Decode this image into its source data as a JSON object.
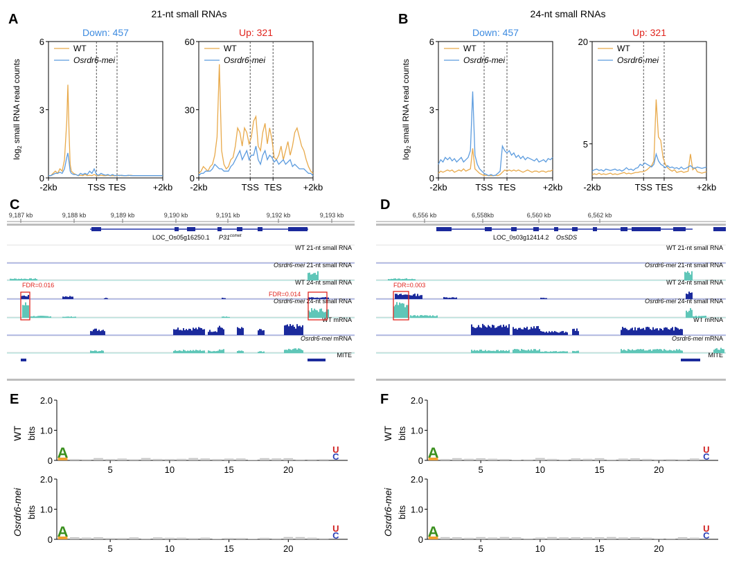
{
  "panels": {
    "A": "A",
    "B": "B",
    "C": "C",
    "D": "D",
    "E": "E",
    "F": "F"
  },
  "colors": {
    "wt": "#e8a94a",
    "mut": "#5b9bde",
    "down": "#3d8be0",
    "up": "#e0231c",
    "track_wt": "#1b2a9c",
    "track_mut": "#5fc6b8",
    "fdr": "#e0231c"
  },
  "metaplots": {
    "A": {
      "title": "21-nt small RNAs",
      "ylabel": "log2 small RNA read counts",
      "xticks": [
        "-2kb",
        "TSS",
        "TES",
        "+2kb"
      ],
      "legend": [
        "WT",
        "Osrdr6-mei"
      ],
      "plots": [
        {
          "label": "Down: 457",
          "ylim": [
            0,
            6
          ],
          "yticks": [
            "0",
            "3",
            "6"
          ],
          "chart_data": {
            "type": "line",
            "x": [
              0,
              2,
              4,
              6,
              8,
              10,
              12,
              14,
              16,
              17,
              18,
              19,
              20,
              22,
              24,
              26,
              28,
              30,
              32,
              34,
              36,
              38,
              40,
              42,
              44,
              46,
              48,
              50,
              52,
              54,
              56,
              58,
              60,
              62,
              64,
              66,
              68,
              70,
              72,
              74,
              76,
              78,
              80,
              82,
              84,
              86,
              88,
              90,
              92,
              94,
              96,
              98,
              100
            ],
            "series": [
              {
                "name": "WT",
                "values": [
                  0.1,
                  0.1,
                  0.2,
                  0.3,
                  0.2,
                  0.4,
                  0.3,
                  0.8,
                  2.5,
                  4.1,
                  2.0,
                  0.6,
                  0.3,
                  0.2,
                  0.15,
                  0.1,
                  0.12,
                  0.1,
                  0.15,
                  0.1,
                  0.12,
                  0.1,
                  0.15,
                  0.1,
                  0.1,
                  0.12,
                  0.1,
                  0.1,
                  0.12,
                  0.1,
                  0.1,
                  0.1,
                  0.1,
                  0.12,
                  0.1,
                  0.1,
                  0.1,
                  0.1,
                  0.12,
                  0.1,
                  0.1,
                  0.1,
                  0.1,
                  0.1,
                  0.1,
                  0.1,
                  0.1,
                  0.1,
                  0.1,
                  0.1,
                  0.1,
                  0.1,
                  0.1
                ]
              },
              {
                "name": "Osrdr6-mei",
                "values": [
                  0.1,
                  0.1,
                  0.15,
                  0.2,
                  0.2,
                  0.25,
                  0.2,
                  0.4,
                  0.9,
                  1.1,
                  0.7,
                  0.3,
                  0.2,
                  0.15,
                  0.15,
                  0.1,
                  0.2,
                  0.15,
                  0.2,
                  0.15,
                  0.3,
                  0.2,
                  0.4,
                  0.15,
                  0.12,
                  0.2,
                  0.15,
                  0.12,
                  0.15,
                  0.1,
                  0.15,
                  0.1,
                  0.12,
                  0.1,
                  0.12,
                  0.1,
                  0.1,
                  0.12,
                  0.1,
                  0.1,
                  0.1,
                  0.1,
                  0.1,
                  0.1,
                  0.1,
                  0.1,
                  0.1,
                  0.1,
                  0.1,
                  0.1,
                  0.1,
                  0.1,
                  0.1
                ]
              }
            ]
          }
        },
        {
          "label": "Up: 321",
          "ylim": [
            0,
            60
          ],
          "yticks": [
            "0",
            "30",
            "60"
          ],
          "chart_data": {
            "type": "line",
            "x": [
              0,
              2,
              4,
              6,
              8,
              10,
              12,
              14,
              16,
              18,
              20,
              22,
              24,
              26,
              28,
              30,
              32,
              34,
              36,
              38,
              40,
              42,
              44,
              46,
              48,
              50,
              52,
              54,
              56,
              58,
              60,
              62,
              64,
              66,
              68,
              70,
              72,
              74,
              76,
              78,
              80,
              82,
              84,
              86,
              88,
              90,
              92,
              94,
              96,
              98,
              100
            ],
            "series": [
              {
                "name": "WT",
                "values": [
                  2,
                  3,
                  5,
                  4,
                  3,
                  5,
                  6,
                  10,
                  18,
                  50,
                  12,
                  6,
                  4,
                  5,
                  8,
                  9,
                  14,
                  22,
                  20,
                  14,
                  22,
                  20,
                  15,
                  18,
                  25,
                  27,
                  14,
                  12,
                  20,
                  24,
                  15,
                  22,
                  17,
                  9,
                  8,
                  10,
                  14,
                  8,
                  12,
                  16,
                  10,
                  14,
                  20,
                  22,
                  18,
                  14,
                  12,
                  8,
                  5,
                  3,
                  2
                ]
              },
              {
                "name": "Osrdr6-mei",
                "values": [
                  1,
                  2,
                  2,
                  3,
                  3,
                  3,
                  4,
                  6,
                  5,
                  4,
                  4,
                  3,
                  3,
                  3,
                  5,
                  6,
                  8,
                  10,
                  12,
                  8,
                  10,
                  12,
                  8,
                  10,
                  10,
                  14,
                  8,
                  6,
                  10,
                  12,
                  8,
                  10,
                  9,
                  7,
                  8,
                  6,
                  7,
                  8,
                  6,
                  7,
                  8,
                  5,
                  6,
                  5,
                  4,
                  4,
                  4,
                  3,
                  2,
                  2,
                  1
                ]
              }
            ]
          }
        }
      ]
    },
    "B": {
      "title": "24-nt small RNAs",
      "ylabel": "log2 small RNA read counts",
      "xticks": [
        "-2kb",
        "TSS",
        "TES",
        "+2kb"
      ],
      "legend": [
        "WT",
        "Osrdr6-mei"
      ],
      "plots": [
        {
          "label": "Down: 457",
          "ylim": [
            0,
            6
          ],
          "yticks": [
            "0",
            "3",
            "6"
          ],
          "chart_data": {
            "type": "line",
            "x": [
              0,
              2,
              4,
              6,
              8,
              10,
              12,
              14,
              16,
              18,
              20,
              22,
              24,
              26,
              28,
              30,
              32,
              34,
              36,
              38,
              40,
              42,
              44,
              46,
              48,
              50,
              52,
              54,
              56,
              58,
              60,
              62,
              64,
              66,
              68,
              70,
              72,
              74,
              76,
              78,
              80,
              82,
              84,
              86,
              88,
              90,
              92,
              94,
              96,
              98,
              100
            ],
            "series": [
              {
                "name": "WT",
                "values": [
                  0.2,
                  0.3,
                  0.25,
                  0.3,
                  0.35,
                  0.3,
                  0.35,
                  0.25,
                  0.3,
                  0.35,
                  0.3,
                  0.4,
                  0.3,
                  0.35,
                  0.4,
                  1.3,
                  0.4,
                  0.3,
                  0.2,
                  0.15,
                  0.1,
                  0.12,
                  0.1,
                  0.1,
                  0.1,
                  0.12,
                  0.1,
                  0.15,
                  0.25,
                  0.35,
                  0.3,
                  0.35,
                  0.3,
                  0.35,
                  0.3,
                  0.35,
                  0.3,
                  0.25,
                  0.3,
                  0.35,
                  0.3,
                  0.25,
                  0.3,
                  0.3,
                  0.25,
                  0.3,
                  0.3,
                  0.25,
                  0.3,
                  0.3,
                  0.35
                ]
              },
              {
                "name": "Osrdr6-mei",
                "values": [
                  0.6,
                  0.8,
                  0.7,
                  0.9,
                  0.8,
                  0.9,
                  0.75,
                  0.85,
                  0.7,
                  0.8,
                  0.9,
                  0.7,
                  0.8,
                  0.9,
                  1.2,
                  3.8,
                  1.0,
                  0.6,
                  0.4,
                  0.3,
                  0.2,
                  0.15,
                  0.1,
                  0.15,
                  0.1,
                  0.12,
                  0.2,
                  0.3,
                  1.4,
                  1.2,
                  1.1,
                  1.2,
                  1.0,
                  1.1,
                  0.9,
                  1.0,
                  0.85,
                  0.95,
                  0.8,
                  0.9,
                  0.85,
                  0.8,
                  0.75,
                  0.85,
                  0.7,
                  0.75,
                  0.8,
                  0.7,
                  0.85,
                  0.8,
                  0.9
                ]
              }
            ]
          }
        },
        {
          "label": "Up: 321",
          "ylim": [
            0,
            20
          ],
          "yticks": [
            "5",
            "20"
          ],
          "chart_data": {
            "type": "line",
            "x": [
              0,
              2,
              4,
              6,
              8,
              10,
              12,
              14,
              16,
              18,
              20,
              22,
              24,
              26,
              28,
              30,
              32,
              34,
              36,
              38,
              40,
              42,
              44,
              46,
              48,
              50,
              52,
              54,
              56,
              58,
              60,
              62,
              64,
              66,
              68,
              70,
              72,
              74,
              76,
              78,
              80,
              82,
              84,
              86,
              88,
              90,
              92,
              94,
              96,
              98,
              100
            ],
            "series": [
              {
                "name": "WT",
                "values": [
                  0.5,
                  0.6,
                  0.5,
                  0.7,
                  0.5,
                  0.6,
                  0.5,
                  0.6,
                  0.7,
                  0.5,
                  0.6,
                  0.5,
                  0.6,
                  0.7,
                  0.8,
                  0.6,
                  0.7,
                  0.6,
                  0.7,
                  0.8,
                  0.8,
                  0.9,
                  0.9,
                  1.0,
                  1.2,
                  1.5,
                  1.8,
                  2.5,
                  11.5,
                  6,
                  5.5,
                  3,
                  2,
                  1.5,
                  1.2,
                  1.0,
                  1.2,
                  0.8,
                  0.9,
                  1.0,
                  0.8,
                  0.9,
                  1.0,
                  3.5,
                  1.2,
                  1.5,
                  0.9,
                  0.8,
                  0.7,
                  0.8,
                  0.9
                ]
              },
              {
                "name": "Osrdr6-mei",
                "values": [
                  1.0,
                  1.2,
                  1.3,
                  1.1,
                  1.2,
                  1.0,
                  1.3,
                  1.2,
                  1.1,
                  1.2,
                  1.3,
                  1.1,
                  1.2,
                  1.0,
                  1.2,
                  1.5,
                  1.2,
                  1.3,
                  1.1,
                  1.4,
                  1.5,
                  2.0,
                  1.8,
                  2.2,
                  2.0,
                  1.8,
                  1.6,
                  2.0,
                  3.5,
                  2.5,
                  2.0,
                  1.8,
                  1.5,
                  1.8,
                  1.5,
                  1.6,
                  1.4,
                  1.5,
                  1.3,
                  1.6,
                  1.3,
                  1.4,
                  1.6,
                  1.8,
                  1.5,
                  1.4,
                  1.6,
                  1.5,
                  1.4,
                  1.5,
                  1.6
                ]
              }
            ]
          }
        }
      ]
    }
  },
  "browsers": {
    "C": {
      "coords": [
        "9,187 kb",
        "9,188 kb",
        "9,189 kb",
        "9,190 kb",
        "9,191 kb",
        "9,192 kb",
        "9,193 kb"
      ],
      "gene": "LOC_Os05g16250.1",
      "gene_name": "P31",
      "gene_sup": "comet",
      "tracks": [
        "WT 21-nt small RNA",
        "Osrdr6-mei 21-nt small RNA",
        "WT 24-nt small RNA",
        "Osrdr6-mei 24-nt small RNA",
        "WT mRNA",
        "Osrdr6-mei mRNA",
        "MITE"
      ],
      "fdr": [
        "FDR=0.016",
        "FDR=0.014"
      ]
    },
    "D": {
      "coords": [
        "6,556 kb",
        "6,558kb",
        "6,560 kb",
        "6,562 kb"
      ],
      "gene": "LOC_0s03g12414.2",
      "gene_name": "OsSDS",
      "tracks": [
        "WT 21-nt small RNA",
        "Osrdr6-mei 21-nt small RNA",
        "WT 24-nt small RNA",
        "Osrdr6-mei 24-nt small RNA",
        "WT mRNA",
        "Osrdr6-mei mRNA",
        "MITE"
      ],
      "fdr": [
        "FDR=0.003"
      ]
    }
  },
  "logos": {
    "yticks": [
      "0",
      "1.0",
      "2.0"
    ],
    "ylabel": "bits",
    "xticks": [
      "5",
      "10",
      "15",
      "20"
    ],
    "rows": [
      "WT",
      "Osrdr6-mei"
    ],
    "first_letter": "A",
    "last_letters": [
      "U",
      "C"
    ]
  }
}
